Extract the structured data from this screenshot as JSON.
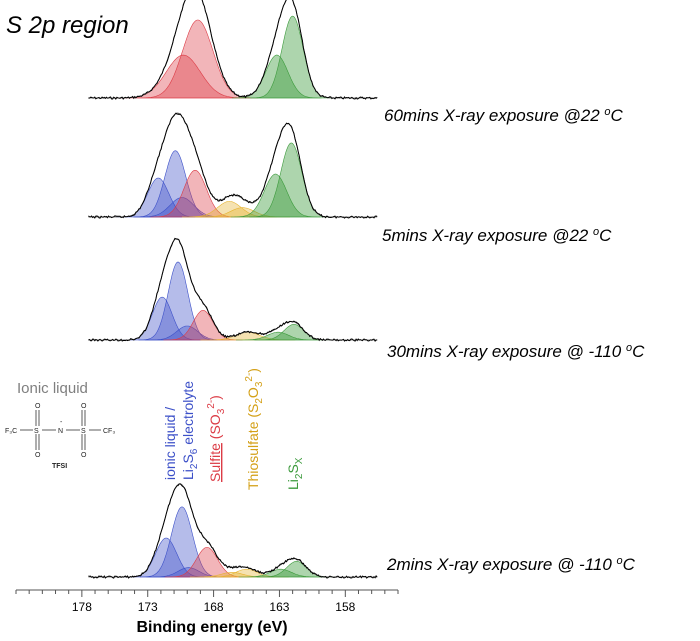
{
  "chart_data": {
    "type": "line",
    "title": "S 2p region",
    "xlabel": "Binding energy (eV)",
    "ylabel": "",
    "x_reversed": true,
    "xlim": [
      183,
      154
    ],
    "x_ticks": [
      178,
      173,
      168,
      163,
      158
    ],
    "grid": false,
    "legend": "none",
    "series_colors": {
      "ionic_liquid": "#3c50c8",
      "sulfite": "#dc3c46",
      "thiosulfate": "#e6b432",
      "polysulfide": "#3c9a3c"
    },
    "traces": [
      {
        "label": "60mins X-ray exposure @22 ",
        "unit": "oC",
        "baseline_offset": 3,
        "components": [
          {
            "series": "sulfite",
            "center": 170.3,
            "height": 0.55,
            "width": 1.3
          },
          {
            "series": "sulfite",
            "center": 169.2,
            "height": 1.0,
            "width": 1.15
          },
          {
            "series": "polysulfide",
            "center": 163.2,
            "height": 0.55,
            "width": 0.85
          },
          {
            "series": "polysulfide",
            "center": 162.0,
            "height": 1.05,
            "width": 0.8
          }
        ]
      },
      {
        "label": "5mins X-ray exposure @22 ",
        "unit": "oC",
        "baseline_offset": 2,
        "components": [
          {
            "series": "ionic_liquid",
            "center": 172.2,
            "height": 0.5,
            "width": 0.8
          },
          {
            "series": "ionic_liquid",
            "center": 170.9,
            "height": 0.85,
            "width": 0.8
          },
          {
            "series": "ionic_liquid",
            "center": 170.4,
            "height": 0.25,
            "width": 0.9
          },
          {
            "series": "sulfite",
            "center": 169.4,
            "height": 0.6,
            "width": 0.85
          },
          {
            "series": "thiosulfate",
            "center": 166.8,
            "height": 0.2,
            "width": 0.9
          },
          {
            "series": "thiosulfate",
            "center": 165.8,
            "height": 0.12,
            "width": 0.9
          },
          {
            "series": "polysulfide",
            "center": 163.3,
            "height": 0.55,
            "width": 0.85
          },
          {
            "series": "polysulfide",
            "center": 162.1,
            "height": 0.95,
            "width": 0.8
          }
        ]
      },
      {
        "label": "30mins X-ray exposure @ -110 ",
        "unit": "oC",
        "baseline_offset": 1,
        "components": [
          {
            "series": "ionic_liquid",
            "center": 171.9,
            "height": 0.55,
            "width": 0.75
          },
          {
            "series": "ionic_liquid",
            "center": 170.7,
            "height": 1.0,
            "width": 0.75
          },
          {
            "series": "ionic_liquid",
            "center": 170.0,
            "height": 0.18,
            "width": 0.8
          },
          {
            "series": "sulfite",
            "center": 168.8,
            "height": 0.38,
            "width": 0.75
          },
          {
            "series": "thiosulfate",
            "center": 165.4,
            "height": 0.1,
            "width": 0.9
          },
          {
            "series": "polysulfide",
            "center": 163.1,
            "height": 0.1,
            "width": 0.8
          },
          {
            "series": "polysulfide",
            "center": 161.9,
            "height": 0.2,
            "width": 0.75
          }
        ]
      },
      {
        "label": "2mins X-ray exposure @ -110 ",
        "unit": "oC",
        "baseline_offset": 0,
        "components": [
          {
            "series": "ionic_liquid",
            "center": 171.6,
            "height": 0.5,
            "width": 0.8
          },
          {
            "series": "ionic_liquid",
            "center": 170.4,
            "height": 0.9,
            "width": 0.8
          },
          {
            "series": "ionic_liquid",
            "center": 169.9,
            "height": 0.12,
            "width": 0.8
          },
          {
            "series": "sulfite",
            "center": 168.5,
            "height": 0.38,
            "width": 0.8
          },
          {
            "series": "thiosulfate",
            "center": 165.5,
            "height": 0.1,
            "width": 0.8
          },
          {
            "series": "thiosulfate",
            "center": 166.6,
            "height": 0.06,
            "width": 0.8
          },
          {
            "series": "polysulfide",
            "center": 162.9,
            "height": 0.1,
            "width": 0.8
          },
          {
            "series": "polysulfide",
            "center": 161.7,
            "height": 0.2,
            "width": 0.75
          }
        ]
      }
    ],
    "annotations": {
      "ionic_liquid_line1": "ionic liquid /",
      "ionic_liquid_line2_a": "Li",
      "ionic_liquid_line2_sub1": "2",
      "ionic_liquid_line2_b": "S",
      "ionic_liquid_line2_sub2": "6",
      "ionic_liquid_line2_c": " electrolyte",
      "sulfite_a": "Sulfite",
      "sulfite_b": " (SO",
      "sulfite_sub": "3",
      "sulfite_sup": "2-",
      "sulfite_c": ")",
      "thiosulfate_a": "Thiosulfate (S",
      "thiosulfate_sub1": "2",
      "thiosulfate_b": "O",
      "thiosulfate_sub2": "3",
      "thiosulfate_sup": "2-",
      "thiosulfate_c": ")",
      "polysulfide_a": "Li",
      "polysulfide_sub1": "2",
      "polysulfide_b": "S",
      "polysulfide_sub2": "X"
    },
    "inset": {
      "heading": "Ionic liquid",
      "cf3_left": "F₃C",
      "cf3_right": "CF₃",
      "s": "S",
      "n": "N",
      "o": "O",
      "charge": "-",
      "caption": "TFSI"
    }
  }
}
